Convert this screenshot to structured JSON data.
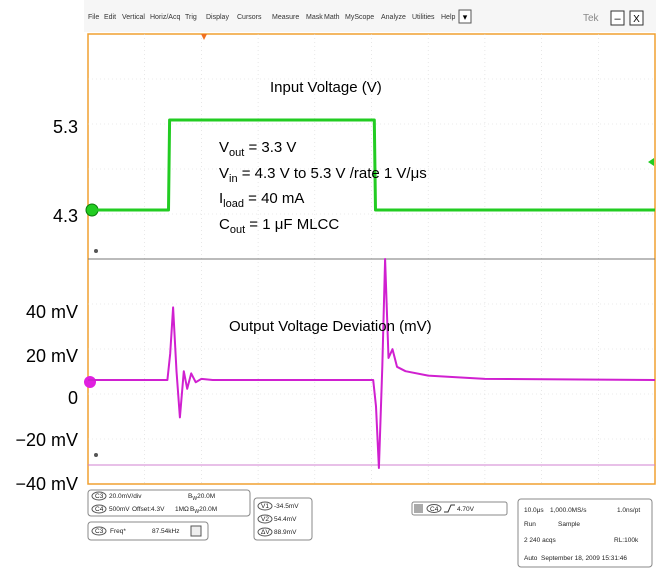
{
  "menu": [
    "File",
    "Edit",
    "Vertical",
    "Horiz/Acq",
    "Trig",
    "Display",
    "Cursors",
    "Measure",
    "Mask",
    "Math",
    "MyScope",
    "Analyze",
    "Utilities",
    "Help"
  ],
  "window_buttons": {
    "dropdown": "▾",
    "minimize": "–",
    "close": "X"
  },
  "brand": "Tek",
  "chart_data": {
    "type": "line",
    "title": "",
    "ytick_labels": [
      "5.3",
      "4.3",
      "40 mV",
      "20 mV",
      "0",
      "−20 mV",
      "−40 mV"
    ],
    "series": [
      {
        "name": "Input Voltage (V)",
        "color": "#22cc22",
        "x_us": [
          0,
          14.2,
          14.4,
          50.5,
          50.7,
          100
        ],
        "y": [
          4.3,
          4.3,
          5.3,
          5.3,
          4.3,
          4.3
        ]
      },
      {
        "name": "Output Voltage Deviation (mV)",
        "color": "#d020d0",
        "x_us": [
          0,
          14.0,
          14.5,
          15.0,
          15.6,
          16.2,
          16.9,
          17.5,
          18.2,
          19,
          20,
          22,
          100
        ],
        "y_mV": [
          0,
          0,
          12,
          33,
          4,
          -17,
          4,
          -4,
          3,
          -1,
          0.5,
          0,
          0
        ]
      },
      {
        "name_hidden": "deviation-second-transition",
        "x_us": [
          50.3,
          50.8,
          51.3,
          51.9,
          52.4,
          53,
          53.7,
          54.5,
          56,
          60,
          70,
          100
        ],
        "y_mV": [
          0,
          -12,
          -40,
          6,
          55,
          10,
          14,
          6,
          4,
          2,
          0.5,
          0
        ]
      }
    ],
    "annotations": {
      "vout": {
        "base": "V",
        "sub": "out",
        "rest": " = 3.3 V"
      },
      "vin": {
        "base": "V",
        "sub": "in",
        "rest": " = 4.3 V to 5.3 V /rate 1 V/μs"
      },
      "iload": {
        "base": "I",
        "sub": "load",
        "rest": " = 40 mA"
      },
      "cout": {
        "base": "C",
        "sub": "out",
        "rest": " = 1 μF MLCC"
      }
    }
  },
  "readouts": {
    "c3_scale": "20.0mV/div",
    "c3_bw": "20.0M",
    "c4_scale": "500mV",
    "c4_offset": "Offset:4.3V",
    "c4_imp": "1MΩ",
    "c4_bw": "20.0M",
    "v1": "-34.5mV",
    "v2": "54.4mV",
    "dv": "88.9mV",
    "freq": "Freq*",
    "freq_val": "87.54kHz",
    "trig_ch": "C4",
    "trig_level": "4.70V",
    "time_div": "10.0μs",
    "sample_rate": "1,000.0MS/s",
    "pt": "1.0ns/pt",
    "mode": "Run",
    "acq": "Sample",
    "acqs": "2 240 acqs",
    "rl": "RL:100k",
    "auto": "Auto",
    "datetime": "September 18, 2009   15:31:46",
    "c3": "C3",
    "c4": "C4",
    "v1_label": "V1",
    "v2_label": "V2",
    "dv_label": "ΔV",
    "bw_mark": "B",
    "bw_sub": "W"
  }
}
